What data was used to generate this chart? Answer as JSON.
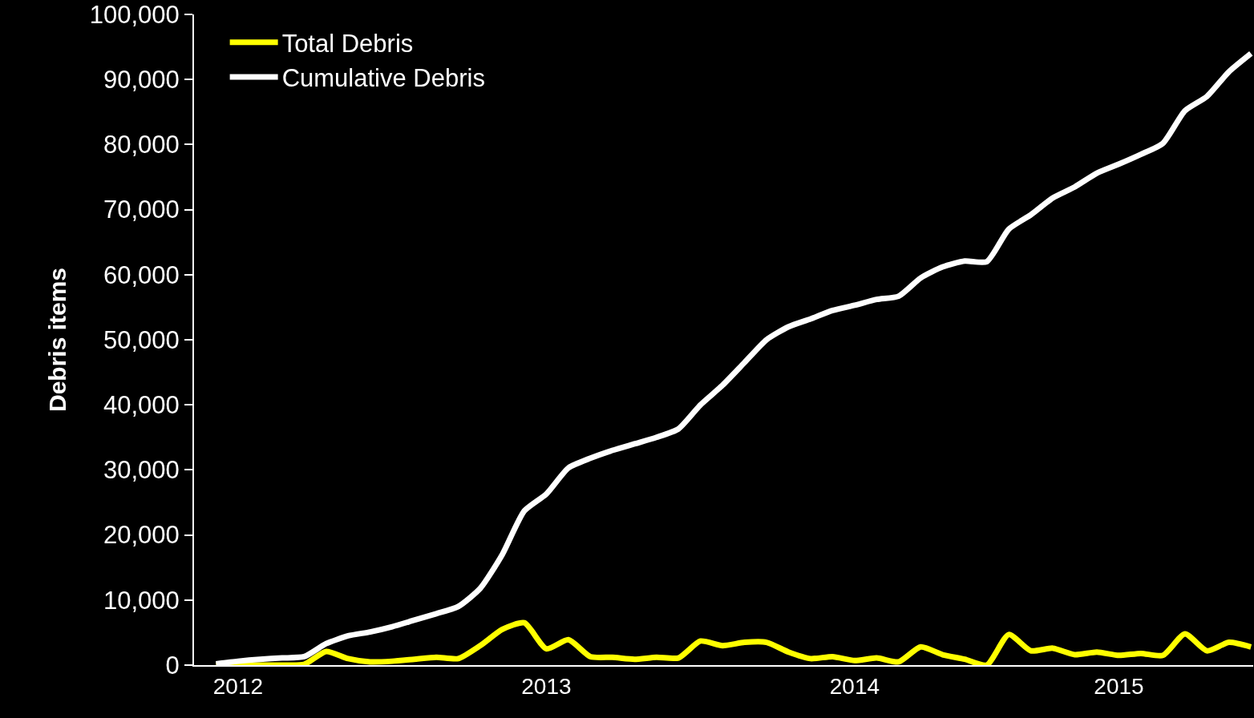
{
  "chart_data": {
    "type": "line",
    "ylabel": "Debris items",
    "categories": [
      null,
      "2012",
      null,
      null,
      null,
      null,
      null,
      null,
      null,
      null,
      null,
      null,
      null,
      null,
      null,
      "2013",
      null,
      null,
      null,
      null,
      null,
      null,
      null,
      null,
      null,
      null,
      null,
      null,
      null,
      "2014",
      null,
      null,
      null,
      null,
      null,
      null,
      null,
      null,
      null,
      null,
      null,
      "2015",
      null,
      null,
      null,
      null,
      null,
      null
    ],
    "series": [
      {
        "name": "Total Debris",
        "color": "#ffff00",
        "values": [
          0,
          0,
          0,
          0,
          100,
          2100,
          1000,
          500,
          600,
          900,
          1200,
          1000,
          3000,
          5500,
          6500,
          2500,
          3900,
          1300,
          1200,
          900,
          1200,
          1100,
          3700,
          3000,
          3500,
          3500,
          2000,
          1000,
          1300,
          700,
          1100,
          500,
          2800,
          1600,
          900,
          0,
          4700,
          2200,
          2600,
          1600,
          2000,
          1500,
          1800,
          1500,
          4800,
          2200,
          3500,
          2800
        ]
      },
      {
        "name": "Cumulative Debris",
        "color": "#ffffff",
        "values": [
          200,
          600,
          900,
          1100,
          1300,
          3300,
          4500,
          5100,
          5900,
          6900,
          7900,
          9000,
          11800,
          17000,
          23700,
          26300,
          30300,
          31800,
          33000,
          34000,
          35000,
          36300,
          40000,
          43000,
          46500,
          50000,
          52000,
          53200,
          54500,
          55300,
          56200,
          56700,
          59500,
          61200,
          62100,
          62000,
          67000,
          69200,
          71800,
          73500,
          75600,
          77000,
          78500,
          80200,
          85200,
          87400,
          91200,
          94000
        ]
      }
    ],
    "ylim": [
      0,
      100000
    ],
    "yticks": [
      {
        "value": 0,
        "label": "0"
      },
      {
        "value": 10000,
        "label": "10,000"
      },
      {
        "value": 20000,
        "label": "20,000"
      },
      {
        "value": 30000,
        "label": "30,000"
      },
      {
        "value": 40000,
        "label": "40,000"
      },
      {
        "value": 50000,
        "label": "50,000"
      },
      {
        "value": 60000,
        "label": "60,000"
      },
      {
        "value": 70000,
        "label": "70,000"
      },
      {
        "value": 80000,
        "label": "80,000"
      },
      {
        "value": 90000,
        "label": "90,000"
      },
      {
        "value": 100000,
        "label": "100,000"
      }
    ],
    "grid": false,
    "legend": "top left",
    "marker": "none",
    "line_style": "solid"
  }
}
